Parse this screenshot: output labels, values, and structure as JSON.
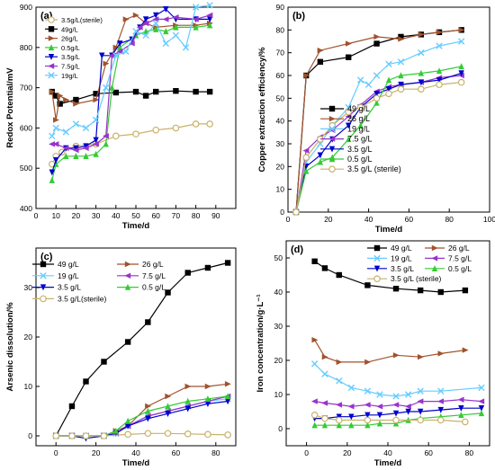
{
  "chart_data": [
    {
      "type": "line",
      "panel_label": "(a)",
      "xlabel": "Time/d",
      "ylabel": "Redox Potential/mV",
      "xlim": [
        0,
        100
      ],
      "ylim": [
        400,
        900
      ],
      "xticks": [
        0,
        10,
        20,
        30,
        40,
        50,
        60,
        70,
        80,
        90
      ],
      "yticks": [
        400,
        500,
        600,
        700,
        800,
        900
      ],
      "legend_position": "top-left",
      "series": [
        {
          "name": "3.5g/L(sterile)",
          "color": "#c9b26b",
          "marker": "circle-open",
          "x": [
            8,
            10,
            13,
            20,
            30,
            40,
            50,
            60,
            70,
            80,
            87
          ],
          "y": [
            510,
            530,
            540,
            555,
            560,
            580,
            585,
            595,
            600,
            610,
            610
          ]
        },
        {
          "name": "49g/L",
          "color": "#000000",
          "marker": "square",
          "x": [
            8,
            10,
            12,
            20,
            30,
            40,
            50,
            55,
            60,
            70,
            80,
            87
          ],
          "y": [
            690,
            680,
            660,
            670,
            685,
            688,
            690,
            680,
            690,
            692,
            690,
            690
          ]
        },
        {
          "name": "26g/L",
          "color": "#a0522d",
          "marker": "tri-right",
          "x": [
            8,
            10,
            12,
            15,
            20,
            30,
            35,
            40,
            45,
            50,
            55,
            60,
            70,
            80,
            87
          ],
          "y": [
            690,
            620,
            680,
            670,
            660,
            670,
            760,
            800,
            870,
            880,
            860,
            850,
            855,
            855,
            860
          ]
        },
        {
          "name": "0.5g/L",
          "color": "#33cc33",
          "marker": "tri-up",
          "x": [
            8,
            10,
            15,
            20,
            25,
            30,
            35,
            38,
            42,
            50,
            55,
            60,
            65,
            70,
            80,
            87
          ],
          "y": [
            470,
            510,
            530,
            530,
            530,
            535,
            560,
            700,
            800,
            830,
            840,
            845,
            840,
            850,
            850,
            855
          ]
        },
        {
          "name": "3.5g/L",
          "color": "#0000cc",
          "marker": "tri-down",
          "x": [
            8,
            10,
            15,
            20,
            25,
            30,
            33,
            38,
            42,
            48,
            52,
            55,
            60,
            65,
            70,
            80,
            87
          ],
          "y": [
            490,
            520,
            550,
            550,
            555,
            570,
            780,
            780,
            810,
            820,
            850,
            870,
            880,
            895,
            870,
            870,
            870
          ]
        },
        {
          "name": "7.5g/L",
          "color": "#9933cc",
          "marker": "tri-left",
          "x": [
            8,
            10,
            15,
            20,
            25,
            30,
            35,
            38,
            42,
            48,
            52,
            55,
            60,
            65,
            70,
            80,
            87
          ],
          "y": [
            560,
            560,
            550,
            545,
            550,
            560,
            580,
            780,
            790,
            810,
            850,
            860,
            870,
            870,
            875,
            870,
            880
          ]
        },
        {
          "name": "19g/L",
          "color": "#66ccff",
          "marker": "cross",
          "x": [
            8,
            10,
            15,
            20,
            25,
            30,
            35,
            40,
            45,
            50,
            55,
            60,
            65,
            70,
            75,
            80,
            87
          ],
          "y": [
            580,
            600,
            590,
            610,
            600,
            620,
            700,
            780,
            790,
            840,
            830,
            860,
            810,
            830,
            800,
            900,
            905
          ]
        }
      ]
    },
    {
      "type": "line",
      "panel_label": "(b)",
      "xlabel": "Time/d",
      "ylabel": "Copper extraction efficiency/%",
      "xlim": [
        0,
        100
      ],
      "ylim": [
        0,
        90
      ],
      "xticks": [
        0,
        20,
        40,
        60,
        80,
        100
      ],
      "yticks": [
        0,
        10,
        20,
        30,
        40,
        50,
        60,
        70,
        80,
        90
      ],
      "legend_position": "bottom-right",
      "series": [
        {
          "name": "49 g/L",
          "color": "#000000",
          "marker": "square",
          "x": [
            4,
            9,
            16,
            30,
            44,
            56,
            66,
            75,
            86
          ],
          "y": [
            0,
            60,
            66,
            68,
            74,
            77,
            78,
            79,
            80
          ]
        },
        {
          "name": "26 g/L",
          "color": "#a0522d",
          "marker": "tri-right",
          "x": [
            4,
            9,
            16,
            30,
            44,
            56,
            66,
            75,
            86
          ],
          "y": [
            0,
            60,
            71,
            74,
            77,
            76,
            78,
            79,
            80
          ]
        },
        {
          "name": "19 g/L",
          "color": "#66ccff",
          "marker": "cross",
          "x": [
            4,
            9,
            16,
            22,
            30,
            36,
            40,
            44,
            50,
            56,
            66,
            75,
            86
          ],
          "y": [
            0,
            22,
            30,
            38,
            46,
            58,
            56,
            60,
            65,
            66,
            70,
            73,
            75
          ]
        },
        {
          "name": "7.5 g/L",
          "color": "#9933cc",
          "marker": "tri-left",
          "x": [
            4,
            9,
            16,
            22,
            30,
            36,
            44,
            50,
            56,
            66,
            75,
            86
          ],
          "y": [
            0,
            27,
            33,
            36,
            42,
            47,
            53,
            55,
            56,
            57,
            59,
            60
          ]
        },
        {
          "name": "3.5 g/L",
          "color": "#0000cc",
          "marker": "tri-down",
          "x": [
            4,
            9,
            16,
            22,
            30,
            36,
            44,
            50,
            56,
            66,
            75,
            86
          ],
          "y": [
            0,
            20,
            25,
            32,
            38,
            46,
            52,
            54,
            56,
            57,
            58,
            61
          ]
        },
        {
          "name": "0.5 g/L",
          "color": "#33cc33",
          "marker": "tri-up",
          "x": [
            4,
            9,
            16,
            22,
            30,
            36,
            44,
            50,
            56,
            66,
            75,
            86
          ],
          "y": [
            0,
            18,
            22,
            24,
            32,
            38,
            48,
            58,
            60,
            61,
            62,
            64
          ]
        },
        {
          "name": "3.5 g/L (sterile)",
          "color": "#c9b26b",
          "marker": "circle-open",
          "x": [
            4,
            9,
            16,
            22,
            30,
            36,
            44,
            50,
            56,
            66,
            75,
            86
          ],
          "y": [
            0,
            24,
            32,
            38,
            44,
            46,
            50,
            52,
            54,
            54,
            56,
            57
          ]
        }
      ]
    },
    {
      "type": "line",
      "panel_label": "(c)",
      "xlabel": "Time/d",
      "ylabel": "Arsenic dissolution/%",
      "xlim": [
        -10,
        90
      ],
      "ylim": [
        -2,
        38
      ],
      "xticks": [
        0,
        20,
        40,
        60,
        80
      ],
      "yticks": [
        0,
        10,
        20,
        30
      ],
      "legend_position": "top-left",
      "series": [
        {
          "name": "49 g/L",
          "color": "#000000",
          "marker": "square",
          "x": [
            0,
            8,
            15,
            24,
            36,
            46,
            56,
            66,
            76,
            86
          ],
          "y": [
            0,
            6,
            11,
            15,
            19,
            23,
            29,
            33,
            34,
            35
          ]
        },
        {
          "name": "26 g/L",
          "color": "#a0522d",
          "marker": "tri-right",
          "x": [
            0,
            8,
            15,
            24,
            30,
            36,
            46,
            56,
            66,
            76,
            86
          ],
          "y": [
            0,
            0,
            0,
            0,
            1,
            2,
            6,
            8,
            10,
            10,
            10.5
          ]
        },
        {
          "name": "19 g/L",
          "color": "#66ccff",
          "marker": "cross",
          "x": [
            0,
            8,
            15,
            24,
            30,
            36,
            46,
            56,
            66,
            76,
            86
          ],
          "y": [
            0,
            0,
            0,
            0,
            0.5,
            2,
            4,
            5,
            6,
            7,
            7.5
          ]
        },
        {
          "name": "7.5 g/L",
          "color": "#9933cc",
          "marker": "tri-left",
          "x": [
            0,
            8,
            15,
            24,
            30,
            36,
            46,
            56,
            66,
            76,
            86
          ],
          "y": [
            0,
            0,
            0,
            0,
            0.5,
            2,
            4,
            5,
            6,
            7,
            8
          ]
        },
        {
          "name": "3.5 g/L",
          "color": "#0000cc",
          "marker": "tri-down",
          "x": [
            0,
            8,
            15,
            24,
            30,
            36,
            46,
            56,
            66,
            76,
            86
          ],
          "y": [
            0,
            0,
            -0.5,
            0,
            0.5,
            2,
            3.5,
            4.5,
            5.5,
            6.5,
            7
          ]
        },
        {
          "name": "0.5 g/L",
          "color": "#33cc33",
          "marker": "tri-up",
          "x": [
            0,
            8,
            15,
            24,
            30,
            36,
            46,
            56,
            66,
            76,
            86
          ],
          "y": [
            0,
            0,
            0,
            0,
            1,
            3,
            5,
            6,
            7,
            7.5,
            8
          ]
        },
        {
          "name": "3.5 g/L(sterile)",
          "color": "#c9b26b",
          "marker": "circle-open",
          "x": [
            0,
            8,
            15,
            24,
            36,
            46,
            56,
            66,
            76,
            86
          ],
          "y": [
            0,
            0,
            0,
            0,
            0.3,
            0.5,
            0.5,
            0.4,
            0.3,
            0.2
          ]
        }
      ]
    },
    {
      "type": "line",
      "panel_label": "(d)",
      "xlabel": "Time/d",
      "ylabel": "Iron concentration/g·L⁻¹",
      "xlim": [
        -10,
        90
      ],
      "ylim": [
        -5,
        55
      ],
      "xticks": [
        0,
        20,
        40,
        60,
        80
      ],
      "yticks": [
        0,
        10,
        20,
        30,
        40,
        50
      ],
      "legend_position": "top-right",
      "series": [
        {
          "name": "49 g/L",
          "color": "#000000",
          "marker": "square",
          "x": [
            4,
            9,
            16,
            30,
            44,
            56,
            66,
            78
          ],
          "y": [
            49,
            47,
            45,
            42,
            41,
            40.5,
            40,
            40.5
          ]
        },
        {
          "name": "26 g/L",
          "color": "#a0522d",
          "marker": "tri-right",
          "x": [
            4,
            9,
            16,
            30,
            44,
            56,
            66,
            78
          ],
          "y": [
            26,
            21,
            19.5,
            19.5,
            21.5,
            21,
            22,
            23
          ]
        },
        {
          "name": "19 g/L",
          "color": "#66ccff",
          "marker": "cross",
          "x": [
            4,
            9,
            16,
            22,
            30,
            36,
            44,
            50,
            56,
            66,
            86
          ],
          "y": [
            19,
            16,
            14,
            12,
            11,
            10,
            9.5,
            10,
            11,
            11,
            12
          ]
        },
        {
          "name": "7.5 g/L",
          "color": "#9933cc",
          "marker": "tri-left",
          "x": [
            4,
            9,
            16,
            22,
            30,
            36,
            44,
            50,
            56,
            66,
            76,
            86
          ],
          "y": [
            8,
            7.5,
            7,
            6.5,
            7,
            6.5,
            7,
            6.5,
            8,
            8,
            8.5,
            8
          ]
        },
        {
          "name": "3.5 g/L",
          "color": "#0000cc",
          "marker": "tri-down",
          "x": [
            4,
            9,
            16,
            22,
            30,
            36,
            44,
            50,
            56,
            66,
            76,
            86
          ],
          "y": [
            3,
            3,
            3.5,
            3.5,
            4,
            4,
            4.5,
            5,
            5,
            5.5,
            6,
            6
          ]
        },
        {
          "name": "0.5 g/L",
          "color": "#33cc33",
          "marker": "tri-up",
          "x": [
            4,
            9,
            16,
            22,
            30,
            36,
            44,
            50,
            56,
            66,
            76,
            86
          ],
          "y": [
            1,
            1,
            1,
            1,
            1,
            1.5,
            1.5,
            2.5,
            3,
            3.5,
            4,
            4.5
          ]
        },
        {
          "name": "3.5 g/L (sterile)",
          "color": "#c9b26b",
          "marker": "circle-open",
          "x": [
            4,
            9,
            16,
            30,
            44,
            56,
            66,
            78
          ],
          "y": [
            4,
            3,
            2.5,
            2.5,
            2.5,
            2.5,
            2.5,
            2
          ]
        }
      ]
    }
  ]
}
